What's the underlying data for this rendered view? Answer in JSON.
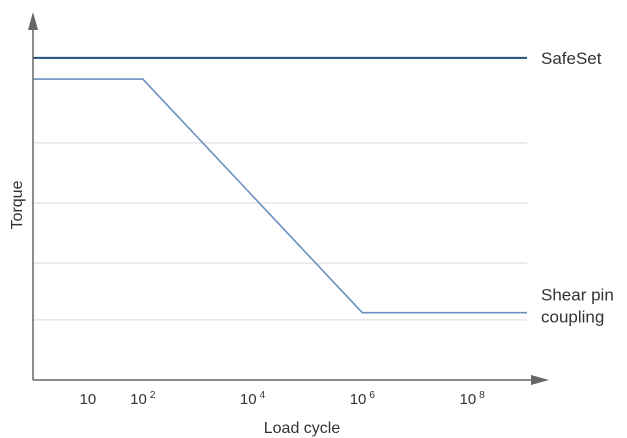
{
  "chart_data": {
    "type": "line",
    "title": "",
    "xlabel": "Load cycle",
    "ylabel": "Torque",
    "x_scale": "log",
    "xlim": [
      1,
      1000000000
    ],
    "y_scale": "relative",
    "ylim": [
      0,
      1
    ],
    "grid": true,
    "legend": "none",
    "x_ticks": [
      {
        "value": 10,
        "base": "10",
        "exp": ""
      },
      {
        "value": 100,
        "base": "10",
        "exp": "2"
      },
      {
        "value": 10000,
        "base": "10",
        "exp": "4"
      },
      {
        "value": 1000000,
        "base": "10",
        "exp": "6"
      },
      {
        "value": 100000000,
        "base": "10",
        "exp": "8"
      }
    ],
    "series": [
      {
        "name": "SafeSet",
        "color": "#1f4e79",
        "x": [
          1,
          1000000000
        ],
        "y": [
          0.91,
          0.91
        ]
      },
      {
        "name": "Shear pin coupling",
        "color": "#6a8fc2",
        "x": [
          1,
          100,
          1000000,
          1000000000
        ],
        "y": [
          0.85,
          0.85,
          0.19,
          0.19
        ]
      }
    ]
  }
}
